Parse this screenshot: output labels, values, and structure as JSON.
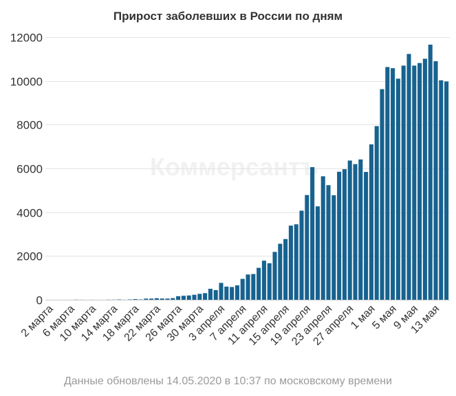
{
  "chart_data": {
    "type": "bar",
    "title": "Прирост заболевших в России по дням",
    "watermark": "Коммерсантъ",
    "footer": "Данные обновлены 14.05.2020 в 10:37 по московскому времени",
    "bar_color": "#17628f",
    "ylim": [
      0,
      12000
    ],
    "yticks": [
      0,
      2000,
      4000,
      6000,
      8000,
      10000,
      12000
    ],
    "ytick_labels": [
      "0",
      "2000",
      "4000",
      "6000",
      "8000",
      "10000",
      "12000"
    ],
    "x_tick_labels": [
      "2 марта",
      "6 марта",
      "10 марта",
      "14 марта",
      "18 марта",
      "22 марта",
      "26 марта",
      "30 марта",
      "3 апреля",
      "7 апреля",
      "11 апреля",
      "15 апреля",
      "19 апреля",
      "23 апреля",
      "27 апреля",
      "1 мая",
      "5 мая",
      "9 мая",
      "13 мая"
    ],
    "values": [
      1,
      0,
      0,
      0,
      1,
      6,
      3,
      0,
      3,
      0,
      1,
      6,
      6,
      14,
      3,
      14,
      30,
      15,
      52,
      53,
      71,
      57,
      54,
      74,
      163,
      182,
      196,
      228,
      270,
      302,
      501,
      440,
      771,
      601,
      582,
      658,
      954,
      1154,
      1175,
      1459,
      1786,
      1667,
      2186,
      2558,
      2774,
      3388,
      3448,
      4070,
      4785,
      6060,
      4268,
      5642,
      5236,
      4774,
      5849,
      5966,
      6361,
      6198,
      6411,
      5841,
      7099,
      7933,
      9623,
      10633,
      10581,
      10102,
      10699,
      11231,
      10699,
      10817,
      11012,
      11656,
      10899,
      10028,
      9974
    ]
  }
}
